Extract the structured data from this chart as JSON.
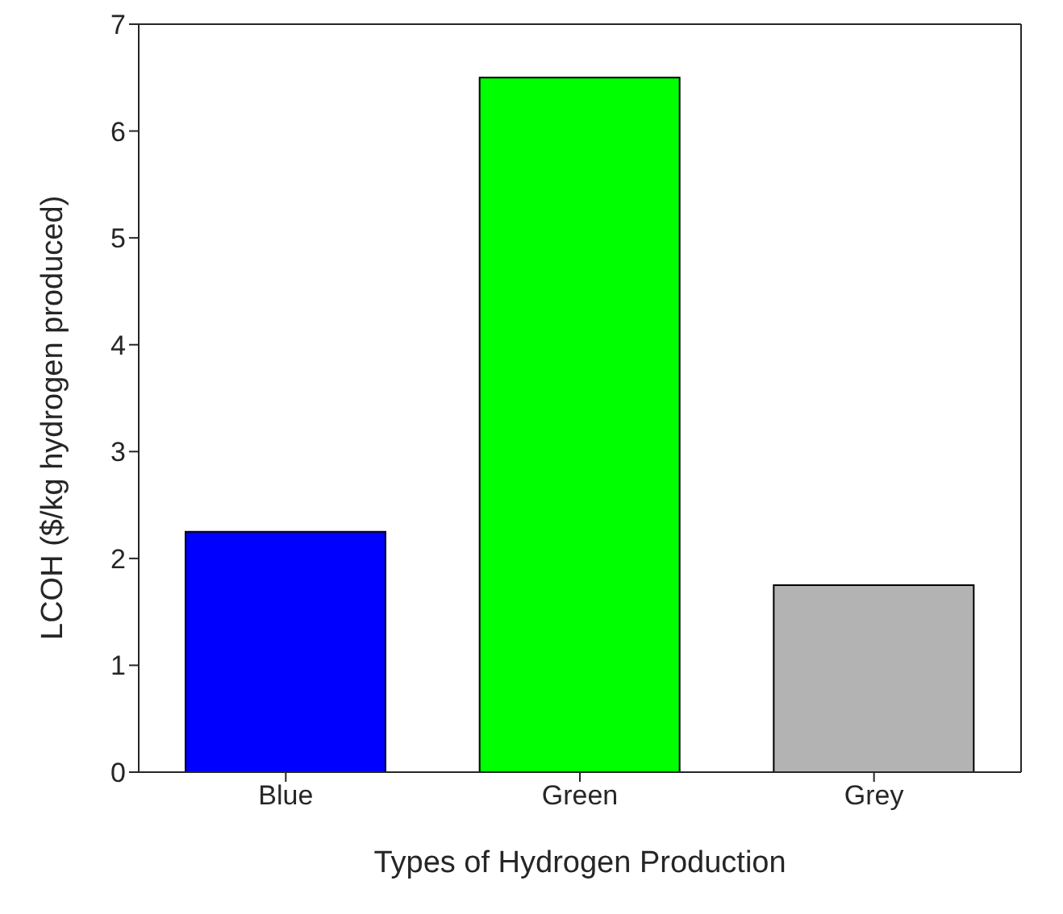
{
  "chart_data": {
    "type": "bar",
    "xlabel": "Types of Hydrogen Production",
    "ylabel": "LCOH ($/kg hydrogen produced)",
    "categories": [
      "Blue",
      "Green",
      "Grey"
    ],
    "values": [
      2.25,
      6.5,
      1.75
    ],
    "colors": [
      "#0000ff",
      "#00ff00",
      "#b3b3b3"
    ],
    "ylim": [
      0,
      7
    ],
    "yticks": [
      0,
      1,
      2,
      3,
      4,
      5,
      6,
      7
    ],
    "grid": false
  }
}
